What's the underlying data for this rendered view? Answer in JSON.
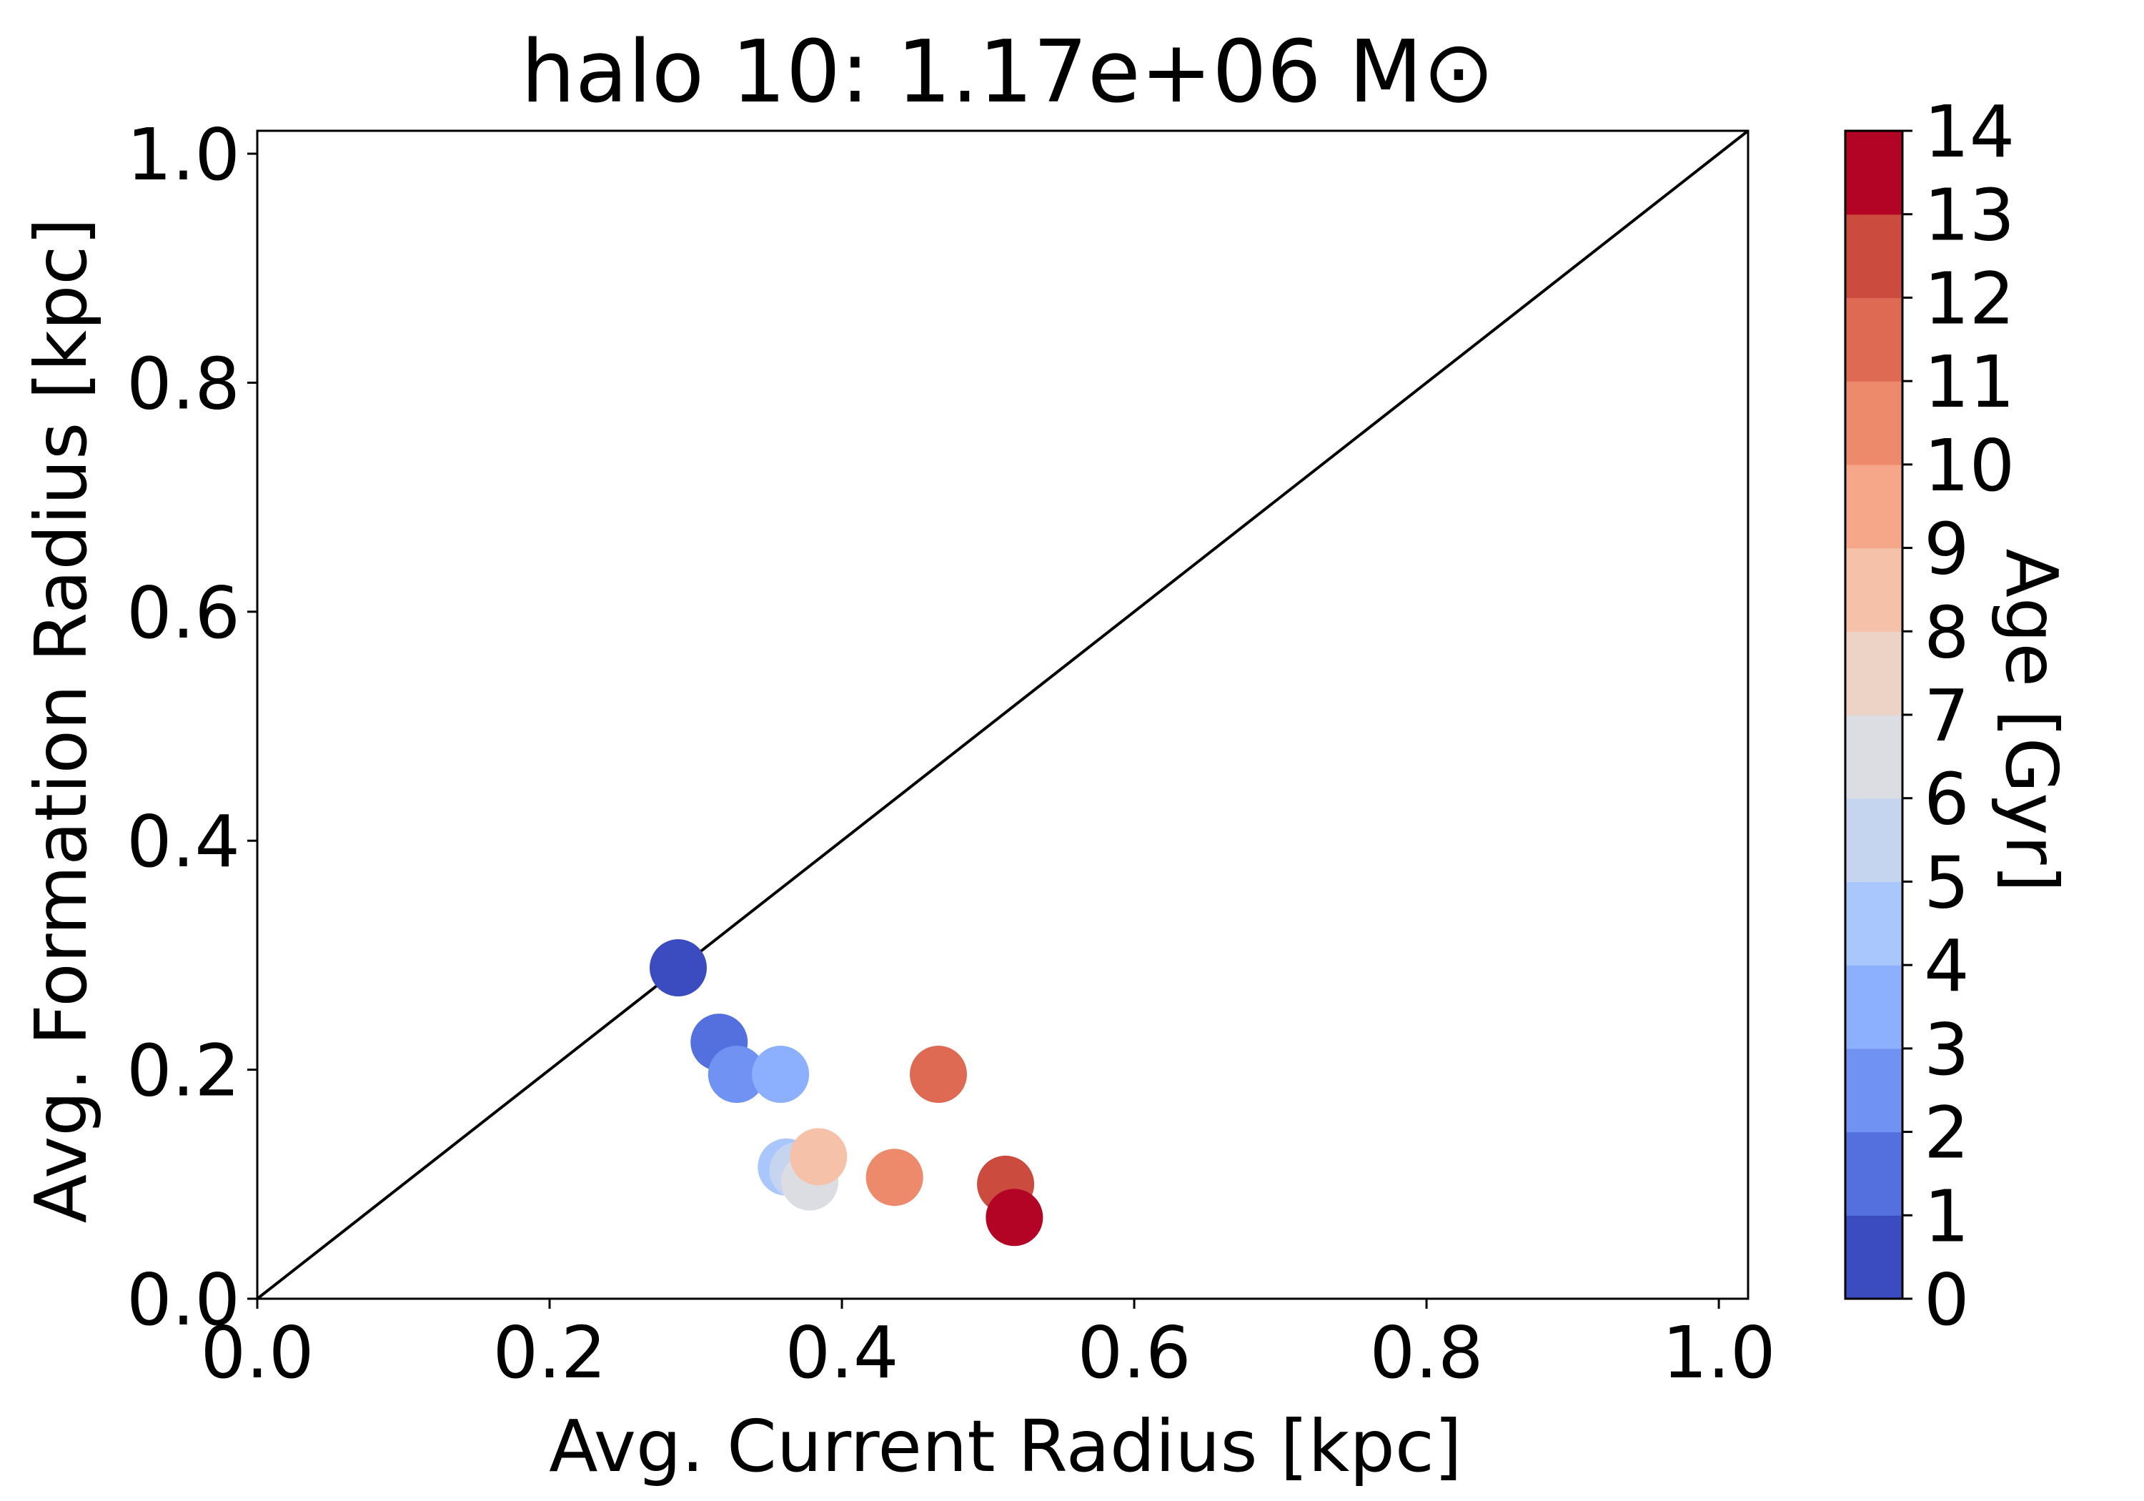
{
  "chart_data": {
    "type": "scatter",
    "title": "halo 10: 1.17e+06 M⊙",
    "xlabel": "Avg. Current Radius [kpc]",
    "ylabel": "Avg. Formation Radius [kpc]",
    "xlim": [
      0.0,
      1.02
    ],
    "ylim": [
      0.0,
      1.02
    ],
    "x_ticks": [
      "0.0",
      "0.2",
      "0.4",
      "0.6",
      "0.8",
      "1.0"
    ],
    "y_ticks": [
      "0.0",
      "0.2",
      "0.4",
      "0.6",
      "0.8",
      "1.0"
    ],
    "reference_line": {
      "type": "identity",
      "label": ""
    },
    "colorbar": {
      "label": "Age [Gyr]",
      "min": 0,
      "max": 14,
      "ticks": [
        "0",
        "1",
        "2",
        "3",
        "4",
        "5",
        "6",
        "7",
        "8",
        "9",
        "10",
        "11",
        "12",
        "13",
        "14"
      ],
      "bin_colors": [
        "#3b4cc0",
        "#5470de",
        "#6f92f3",
        "#8db0fe",
        "#aac7fd",
        "#c5d5f0",
        "#dcdde3",
        "#ecd3c5",
        "#f5c1a8",
        "#f7a789",
        "#ec8a6b",
        "#de6a54",
        "#cb4b3f",
        "#b40426"
      ]
    },
    "points": [
      {
        "x": 0.288,
        "y": 0.289,
        "age": 0.5
      },
      {
        "x": 0.316,
        "y": 0.224,
        "age": 1.5
      },
      {
        "x": 0.328,
        "y": 0.196,
        "age": 2.5
      },
      {
        "x": 0.358,
        "y": 0.196,
        "age": 3.5
      },
      {
        "x": 0.362,
        "y": 0.115,
        "age": 4.5
      },
      {
        "x": 0.37,
        "y": 0.112,
        "age": 5.5
      },
      {
        "x": 0.378,
        "y": 0.102,
        "age": 6.5
      },
      {
        "x": 0.384,
        "y": 0.124,
        "age": 8.5
      },
      {
        "x": 0.436,
        "y": 0.106,
        "age": 10.5
      },
      {
        "x": 0.466,
        "y": 0.196,
        "age": 11.5
      },
      {
        "x": 0.512,
        "y": 0.1,
        "age": 12.5
      },
      {
        "x": 0.518,
        "y": 0.071,
        "age": 13.5
      }
    ]
  }
}
